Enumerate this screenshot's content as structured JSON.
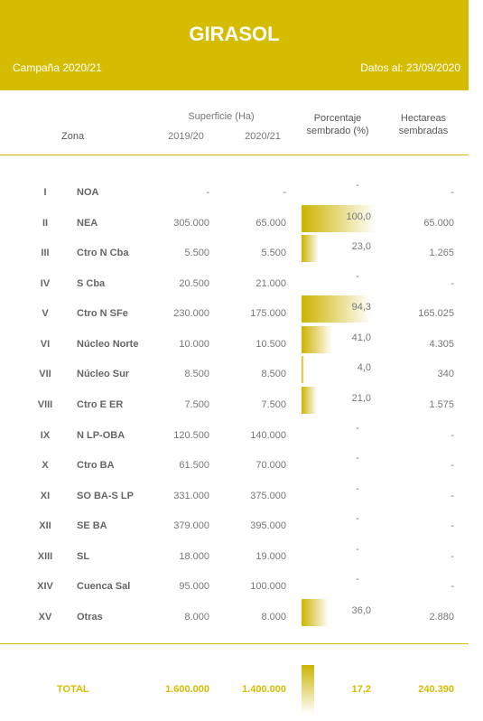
{
  "header": {
    "title": "GIRASOL",
    "campaign": "Campaña 2020/21",
    "date": "Datos al: 23/09/2020"
  },
  "table": {
    "columns": {
      "superficie": "Superficie (Ha)",
      "zona": "Zona",
      "y1": "2019/20",
      "y2": "2020/21",
      "pct": "Porcentaje sembrado (%)",
      "ha": "Hectareas sembradas"
    },
    "rows": [
      [
        "I",
        "NOA",
        "-",
        "-",
        "-",
        "-"
      ],
      [
        "II",
        "NEA",
        "305.000",
        "65.000",
        "100,0",
        "65.000"
      ],
      [
        "III",
        "Ctro N Cba",
        "5.500",
        "5.500",
        "23,0",
        "1.265"
      ],
      [
        "IV",
        "S Cba",
        "20.500",
        "21.000",
        "-",
        "-"
      ],
      [
        "V",
        "Ctro N SFe",
        "230.000",
        "175.000",
        "94,3",
        "165.025"
      ],
      [
        "VI",
        "Núcleo Norte",
        "10.000",
        "10.500",
        "41,0",
        "4.305"
      ],
      [
        "VII",
        "Núcleo Sur",
        "8.500",
        "8.500",
        "4,0",
        "340"
      ],
      [
        "VIII",
        "Ctro E ER",
        "7.500",
        "7.500",
        "21,0",
        "1.575"
      ],
      [
        "IX",
        "N LP-OBA",
        "120.500",
        "140.000",
        "-",
        "-"
      ],
      [
        "X",
        "Ctro BA",
        "61.500",
        "70.000",
        "-",
        "-"
      ],
      [
        "XI",
        "SO BA-S LP",
        "331.000",
        "375.000",
        "-",
        "-"
      ],
      [
        "XII",
        "SE BA",
        "379.000",
        "395.000",
        "-",
        "-"
      ],
      [
        "XIII",
        "SL",
        "18.000",
        "19.000",
        "-",
        "-"
      ],
      [
        "XIV",
        "Cuenca Sal",
        "95.000",
        "100.000",
        "-",
        "-"
      ],
      [
        "XV",
        "Otras",
        "8.000",
        "8.000",
        "36,0",
        "2.880"
      ]
    ],
    "total": [
      "TOTAL",
      "1.600.000",
      "1.400.000",
      "17,2",
      "240.390"
    ]
  }
}
